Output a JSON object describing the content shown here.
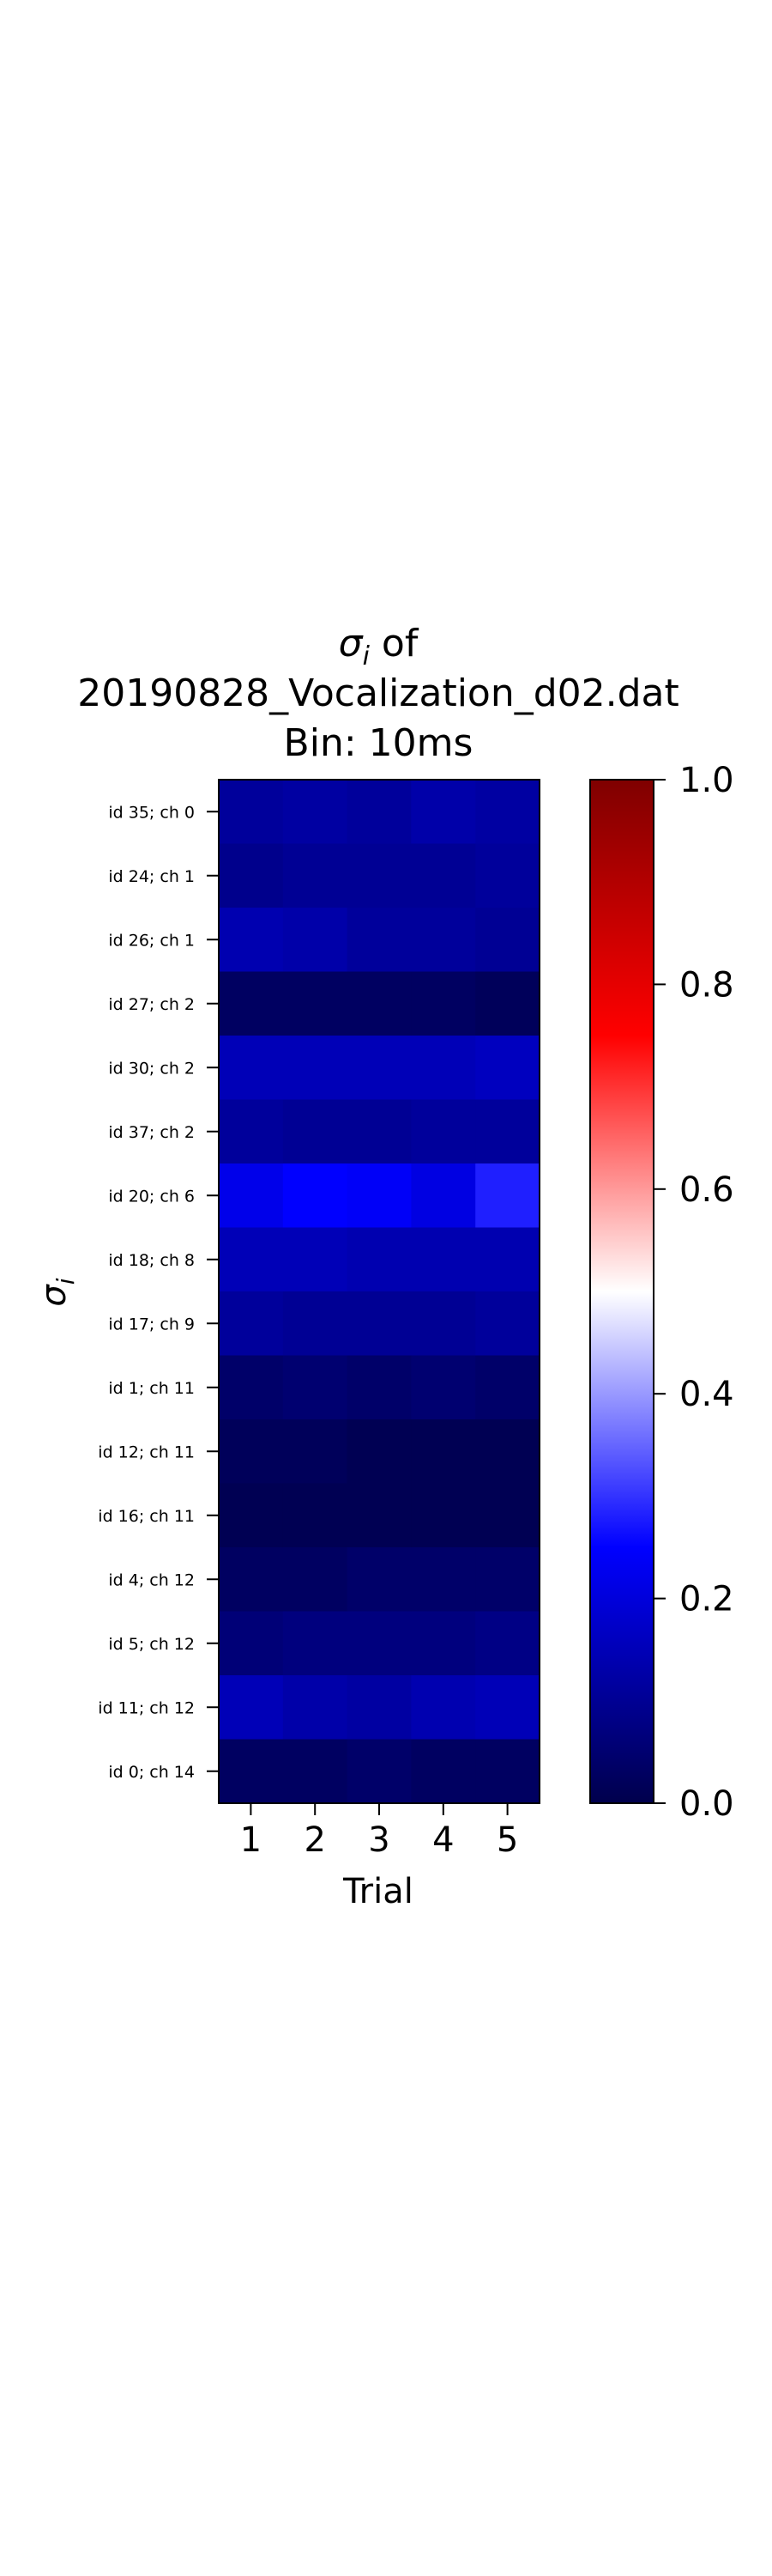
{
  "chart_data": {
    "type": "heatmap",
    "title": {
      "symbol": "σ",
      "symbol_subscript": "i",
      "line1_suffix": " of",
      "line2": "20190828_Vocalization_d02.dat",
      "line3": "Bin: 10ms"
    },
    "xlabel": "Trial",
    "ylabel": {
      "symbol": "σ",
      "subscript": "i"
    },
    "x_categories": [
      "1",
      "2",
      "3",
      "4",
      "5"
    ],
    "y_categories": [
      "id 35; ch 0",
      "id 24; ch 1",
      "id 26; ch 1",
      "id 27; ch 2",
      "id 30; ch 2",
      "id 37; ch 2",
      "id 20; ch 6",
      "id 18; ch 8",
      "id 17; ch 9",
      "id 1; ch 11",
      "id 12; ch 11",
      "id 16; ch 11",
      "id 4; ch 12",
      "id 5; ch 12",
      "id 11; ch 12",
      "id 0; ch 14"
    ],
    "values": [
      [
        0.11,
        0.12,
        0.11,
        0.13,
        0.12
      ],
      [
        0.09,
        0.1,
        0.1,
        0.1,
        0.11
      ],
      [
        0.14,
        0.13,
        0.11,
        0.11,
        0.1
      ],
      [
        0.03,
        0.03,
        0.03,
        0.03,
        0.02
      ],
      [
        0.15,
        0.15,
        0.15,
        0.15,
        0.16
      ],
      [
        0.11,
        0.1,
        0.1,
        0.11,
        0.11
      ],
      [
        0.22,
        0.25,
        0.24,
        0.21,
        0.28
      ],
      [
        0.15,
        0.15,
        0.14,
        0.14,
        0.14
      ],
      [
        0.11,
        0.1,
        0.1,
        0.1,
        0.11
      ],
      [
        0.04,
        0.05,
        0.04,
        0.05,
        0.04
      ],
      [
        0.02,
        0.02,
        0.01,
        0.01,
        0.01
      ],
      [
        0.01,
        0.01,
        0.01,
        0.01,
        0.01
      ],
      [
        0.03,
        0.03,
        0.04,
        0.04,
        0.04
      ],
      [
        0.06,
        0.07,
        0.07,
        0.07,
        0.08
      ],
      [
        0.15,
        0.13,
        0.12,
        0.14,
        0.15
      ],
      [
        0.03,
        0.03,
        0.04,
        0.03,
        0.03
      ]
    ],
    "colormap": "seismic",
    "colormap_stops": [
      "#00004c",
      "#0000ff",
      "#ffffff",
      "#ff0000",
      "#7f0000"
    ],
    "vmin": 0.0,
    "vmax": 1.0,
    "colorbar_ticks": [
      0.0,
      0.2,
      0.4,
      0.6,
      0.8,
      1.0
    ],
    "colorbar_tick_labels": [
      "0.0",
      "0.2",
      "0.4",
      "0.6",
      "0.8",
      "1.0"
    ]
  }
}
